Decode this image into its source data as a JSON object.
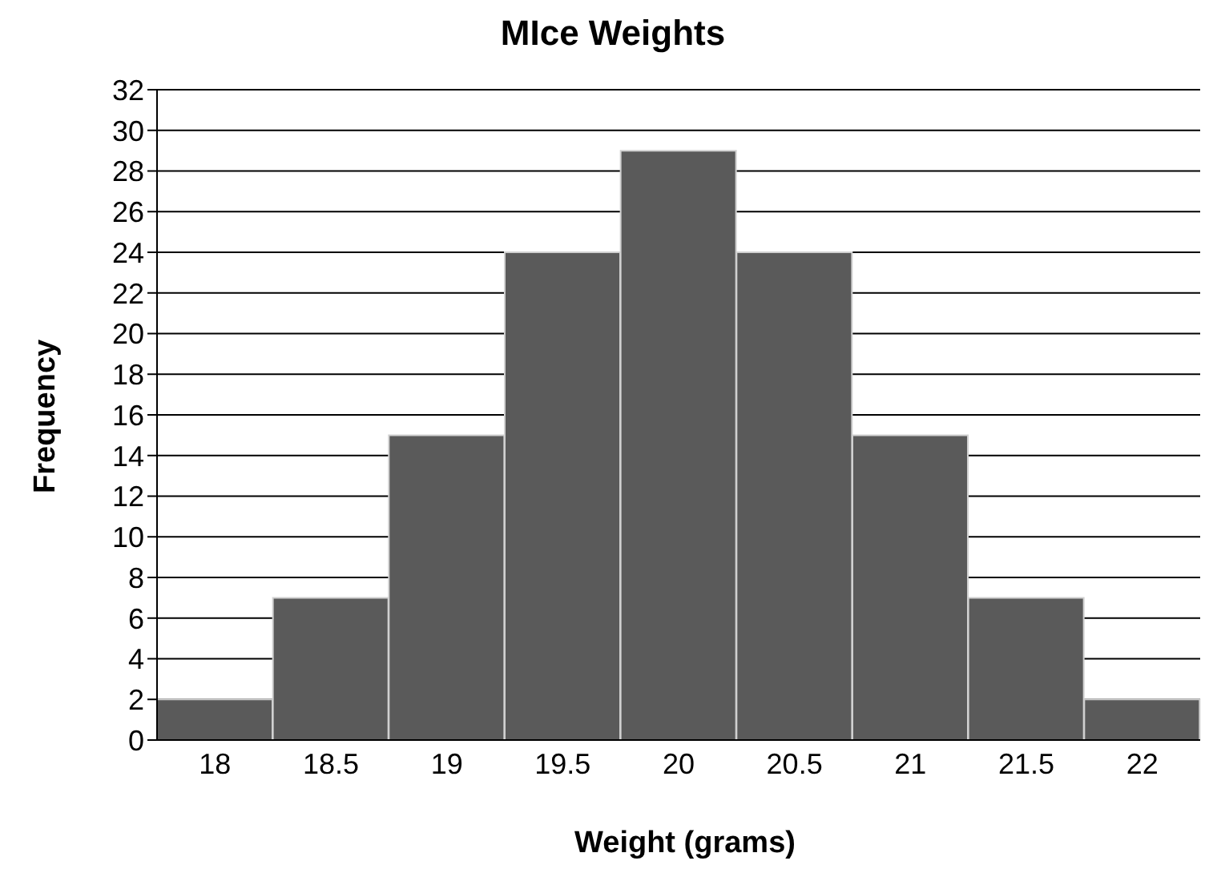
{
  "chart_data": {
    "type": "bar",
    "title": "MIce Weights",
    "xlabel": "Weight (grams)",
    "ylabel": "Frequency",
    "categories": [
      "18",
      "18.5",
      "19",
      "19.5",
      "20",
      "20.5",
      "21",
      "21.5",
      "22"
    ],
    "values": [
      2,
      7,
      15,
      24,
      29,
      24,
      15,
      7,
      2
    ],
    "color": "#5a5a5a",
    "ylim": [
      0,
      32
    ],
    "yticks": [
      0,
      2,
      4,
      6,
      8,
      10,
      12,
      14,
      16,
      18,
      20,
      22,
      24,
      26,
      28,
      30,
      32
    ],
    "grid": "y"
  }
}
